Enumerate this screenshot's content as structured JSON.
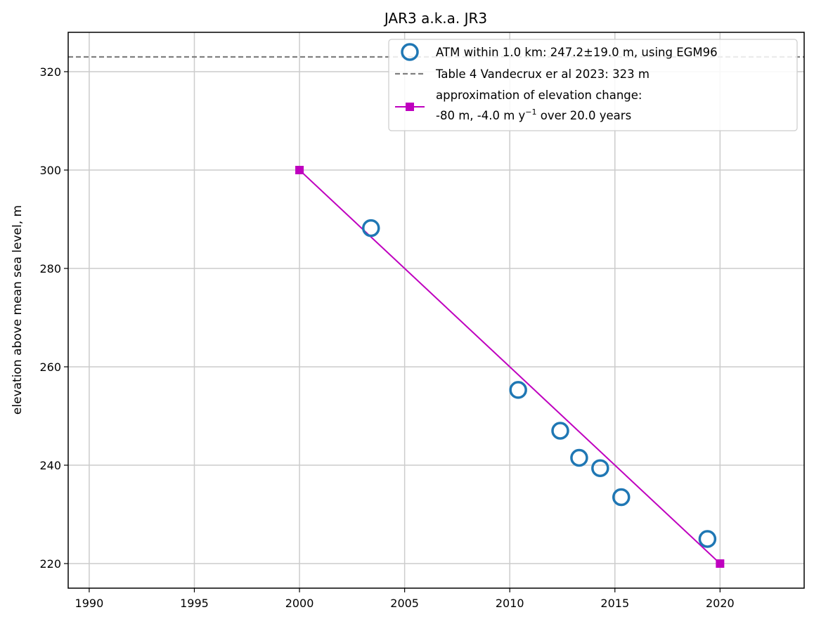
{
  "chart_data": {
    "type": "scatter",
    "title": "JAR3 a.k.a. JR3",
    "xlabel": "",
    "ylabel": "elevation above mean sea level, m",
    "xlim": [
      1989,
      2024
    ],
    "ylim": [
      215,
      328
    ],
    "xticks": [
      1990,
      1995,
      2000,
      2005,
      2010,
      2015,
      2020
    ],
    "yticks": [
      220,
      240,
      260,
      280,
      300,
      320
    ],
    "grid": true,
    "legend_position": "top-right",
    "series": [
      {
        "name": "ATM within 1.0 km: 247.2±19.0 m, using EGM96",
        "kind": "scatter",
        "marker": "open-circle",
        "color": "#1f77b4",
        "x": [
          2003.4,
          2010.4,
          2012.4,
          2013.3,
          2014.3,
          2015.3,
          2019.4
        ],
        "y": [
          288.2,
          255.3,
          247.0,
          241.5,
          239.4,
          233.5,
          225.0
        ]
      },
      {
        "name": "Table 4 Vandecrux er al 2023: 323 m",
        "kind": "hline",
        "style": "dashed",
        "color": "#808080",
        "y": 323
      },
      {
        "name_lines": [
          "approximation of elevation change:",
          "-80 m, -4.0 m y",
          "−1",
          " over 20.0 years"
        ],
        "kind": "line",
        "marker": "square",
        "color": "#bf00bf",
        "x": [
          2000,
          2020
        ],
        "y": [
          300,
          220
        ]
      }
    ]
  }
}
